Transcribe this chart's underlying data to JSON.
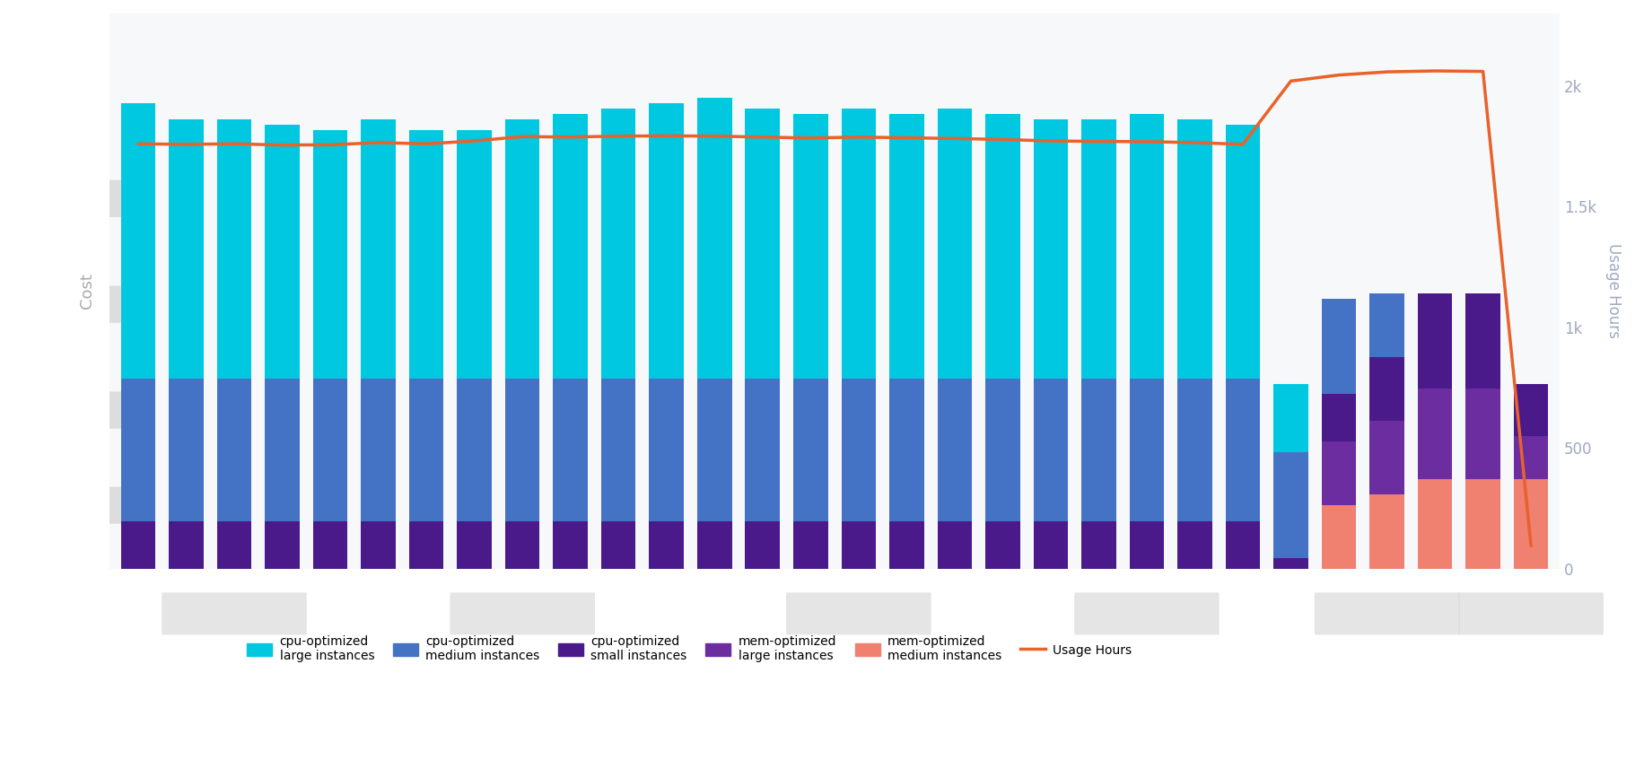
{
  "n_bars": 30,
  "colors": {
    "cpu_large": "#00C8E0",
    "cpu_medium": "#4472C4",
    "cpu_small": "#4A1A8A",
    "mem_large": "#6B2DA0",
    "mem_medium": "#F08070",
    "usage_line": "#E8622A"
  },
  "background": "#FFFFFF",
  "plot_bg": "#F7F8FA",
  "right_axis_color": "#A0A8C0",
  "ylabel_left": "Cost",
  "ylabel_right": "Usage Hours",
  "ylim_left": [
    0,
    1.05
  ],
  "ylim_right": [
    0,
    2300
  ],
  "right_ticks": [
    0,
    500,
    1000,
    1500,
    2000
  ],
  "right_tick_labels": [
    "0",
    "500",
    "1k",
    "1.5k",
    "2k"
  ],
  "cpu_large_values": [
    0.52,
    0.49,
    0.49,
    0.48,
    0.47,
    0.49,
    0.47,
    0.47,
    0.49,
    0.5,
    0.51,
    0.52,
    0.53,
    0.51,
    0.5,
    0.51,
    0.5,
    0.51,
    0.5,
    0.49,
    0.49,
    0.5,
    0.49,
    0.48,
    0.13,
    0.0,
    0.0,
    0.0,
    0.0,
    0.0
  ],
  "cpu_medium_values": [
    0.27,
    0.27,
    0.27,
    0.27,
    0.27,
    0.27,
    0.27,
    0.27,
    0.27,
    0.27,
    0.27,
    0.27,
    0.27,
    0.27,
    0.27,
    0.27,
    0.27,
    0.27,
    0.27,
    0.27,
    0.27,
    0.27,
    0.27,
    0.27,
    0.2,
    0.18,
    0.12,
    0.0,
    0.0,
    0.0
  ],
  "cpu_small_values": [
    0.09,
    0.09,
    0.09,
    0.09,
    0.09,
    0.09,
    0.09,
    0.09,
    0.09,
    0.09,
    0.09,
    0.09,
    0.09,
    0.09,
    0.09,
    0.09,
    0.09,
    0.09,
    0.09,
    0.09,
    0.09,
    0.09,
    0.09,
    0.09,
    0.02,
    0.09,
    0.12,
    0.18,
    0.18,
    0.1
  ],
  "mem_large_values": [
    0.0,
    0.0,
    0.0,
    0.0,
    0.0,
    0.0,
    0.0,
    0.0,
    0.0,
    0.0,
    0.0,
    0.0,
    0.0,
    0.0,
    0.0,
    0.0,
    0.0,
    0.0,
    0.0,
    0.0,
    0.0,
    0.0,
    0.0,
    0.0,
    0.0,
    0.12,
    0.14,
    0.17,
    0.17,
    0.08
  ],
  "mem_medium_values": [
    0.0,
    0.0,
    0.0,
    0.0,
    0.0,
    0.0,
    0.0,
    0.0,
    0.0,
    0.0,
    0.0,
    0.0,
    0.0,
    0.0,
    0.0,
    0.0,
    0.0,
    0.0,
    0.0,
    0.0,
    0.0,
    0.0,
    0.0,
    0.0,
    0.0,
    0.12,
    0.14,
    0.17,
    0.17,
    0.17
  ],
  "usage_hours": [
    1760,
    1758,
    1760,
    1755,
    1756,
    1765,
    1760,
    1772,
    1790,
    1788,
    1792,
    1793,
    1792,
    1788,
    1784,
    1788,
    1785,
    1782,
    1778,
    1772,
    1770,
    1769,
    1765,
    1758,
    2020,
    2045,
    2058,
    2062,
    2060,
    95
  ]
}
